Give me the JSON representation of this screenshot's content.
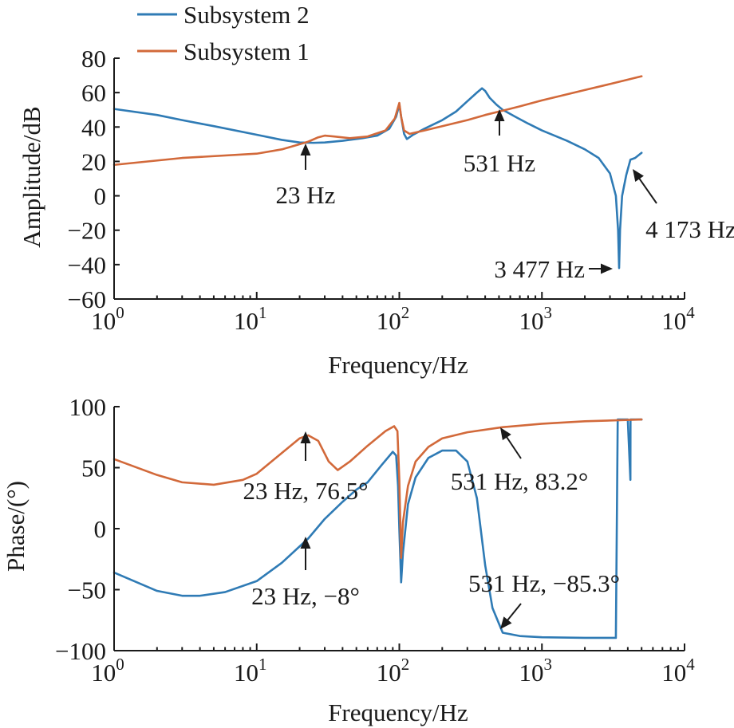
{
  "colors": {
    "subsystem2": "#2f7bb5",
    "subsystem1": "#d2693a",
    "axis": "#1a1a1a"
  },
  "chart_data": [
    {
      "type": "line",
      "xscale": "log",
      "xlim": [
        1,
        10000
      ],
      "ylim": [
        -60,
        80
      ],
      "xlabel": "Frequency/Hz",
      "ylabel": "Amplitude/dB",
      "grid": false,
      "legend_position": "top-left",
      "x_ticks": [
        {
          "value": 1,
          "base": "10",
          "exp": "0"
        },
        {
          "value": 10,
          "base": "10",
          "exp": "1"
        },
        {
          "value": 100,
          "base": "10",
          "exp": "2"
        },
        {
          "value": 1000,
          "base": "10",
          "exp": "3"
        },
        {
          "value": 10000,
          "base": "10",
          "exp": "4"
        }
      ],
      "y_ticks": [
        {
          "value": 80,
          "label": "80"
        },
        {
          "value": 60,
          "label": "60"
        },
        {
          "value": 40,
          "label": "40"
        },
        {
          "value": 20,
          "label": "20"
        },
        {
          "value": 0,
          "label": "0"
        },
        {
          "value": -20,
          "label": "-20"
        },
        {
          "value": -40,
          "label": "-40"
        },
        {
          "value": -60,
          "label": "-60"
        }
      ],
      "series": [
        {
          "name": "Subsystem 2",
          "color": "#2f7bb5",
          "points": [
            [
              1,
              50.5
            ],
            [
              2,
              47
            ],
            [
              3,
              44
            ],
            [
              5,
              40.5
            ],
            [
              10,
              35.5
            ],
            [
              15,
              32.5
            ],
            [
              20,
              31
            ],
            [
              25,
              30.8
            ],
            [
              30,
              31
            ],
            [
              40,
              32
            ],
            [
              55,
              33.5
            ],
            [
              70,
              35
            ],
            [
              85,
              39
            ],
            [
              95,
              46
            ],
            [
              100,
              53
            ],
            [
              103,
              46
            ],
            [
              108,
              36
            ],
            [
              113,
              33
            ],
            [
              125,
              35.5
            ],
            [
              150,
              39
            ],
            [
              200,
              44
            ],
            [
              250,
              49
            ],
            [
              300,
              55
            ],
            [
              350,
              60
            ],
            [
              380,
              62.5
            ],
            [
              400,
              61
            ],
            [
              430,
              57
            ],
            [
              480,
              53
            ],
            [
              531,
              50
            ],
            [
              650,
              46
            ],
            [
              800,
              42
            ],
            [
              1000,
              38
            ],
            [
              1500,
              32
            ],
            [
              2000,
              27
            ],
            [
              2500,
              22
            ],
            [
              3000,
              13
            ],
            [
              3300,
              0
            ],
            [
              3420,
              -20
            ],
            [
              3477,
              -42
            ],
            [
              3530,
              -20
            ],
            [
              3650,
              0
            ],
            [
              3900,
              12
            ],
            [
              4173,
              21
            ],
            [
              4500,
              22
            ],
            [
              5000,
              25
            ]
          ]
        },
        {
          "name": "Subsystem 1",
          "color": "#d2693a",
          "points": [
            [
              1,
              18
            ],
            [
              3,
              22
            ],
            [
              10,
              24.5
            ],
            [
              15,
              27
            ],
            [
              20,
              30
            ],
            [
              23,
              31.5
            ],
            [
              27,
              34
            ],
            [
              30,
              35
            ],
            [
              35,
              34.5
            ],
            [
              45,
              33.5
            ],
            [
              60,
              34.5
            ],
            [
              80,
              38
            ],
            [
              93,
              45
            ],
            [
              100,
              54
            ],
            [
              103,
              46
            ],
            [
              108,
              38
            ],
            [
              118,
              36
            ],
            [
              150,
              38
            ],
            [
              200,
              40.5
            ],
            [
              300,
              44
            ],
            [
              400,
              47
            ],
            [
              531,
              49.5
            ],
            [
              700,
              52
            ],
            [
              1000,
              55.5
            ],
            [
              2000,
              61.5
            ],
            [
              3000,
              65
            ],
            [
              5000,
              69.5
            ]
          ]
        }
      ],
      "annotations": [
        {
          "text": "23 Hz",
          "x": 23,
          "y": 31
        },
        {
          "text": "531 Hz",
          "x": 531,
          "y": 49.5
        },
        {
          "text": "4 173 Hz",
          "x": 4173,
          "y": 21
        },
        {
          "text": "3 477 Hz",
          "x": 3477,
          "y": -42
        }
      ]
    },
    {
      "type": "line",
      "xscale": "log",
      "xlim": [
        1,
        10000
      ],
      "ylim": [
        -100,
        100
      ],
      "xlabel": "Frequency/Hz",
      "ylabel": "Phase/(°)",
      "grid": false,
      "x_ticks": [
        {
          "value": 1,
          "base": "10",
          "exp": "0"
        },
        {
          "value": 10,
          "base": "10",
          "exp": "1"
        },
        {
          "value": 100,
          "base": "10",
          "exp": "2"
        },
        {
          "value": 1000,
          "base": "10",
          "exp": "3"
        },
        {
          "value": 10000,
          "base": "10",
          "exp": "4"
        }
      ],
      "y_ticks": [
        {
          "value": 100,
          "label": "100"
        },
        {
          "value": 50,
          "label": "50"
        },
        {
          "value": 0,
          "label": "0"
        },
        {
          "value": -50,
          "label": "-50"
        },
        {
          "value": -100,
          "label": "-100"
        }
      ],
      "series": [
        {
          "name": "Subsystem 2",
          "color": "#2f7bb5",
          "points": [
            [
              1,
              -36
            ],
            [
              2,
              -51
            ],
            [
              3,
              -55
            ],
            [
              4,
              -55
            ],
            [
              6,
              -52
            ],
            [
              10,
              -43
            ],
            [
              15,
              -28
            ],
            [
              23,
              -8
            ],
            [
              30,
              8
            ],
            [
              40,
              22
            ],
            [
              50,
              32
            ],
            [
              60,
              38
            ],
            [
              75,
              52
            ],
            [
              90,
              63
            ],
            [
              95,
              60
            ],
            [
              98,
              35
            ],
            [
              100,
              0
            ],
            [
              103,
              -44
            ],
            [
              106,
              -20
            ],
            [
              115,
              20
            ],
            [
              130,
              42
            ],
            [
              160,
              58
            ],
            [
              200,
              64
            ],
            [
              250,
              64
            ],
            [
              300,
              55
            ],
            [
              350,
              25
            ],
            [
              400,
              -30
            ],
            [
              450,
              -65
            ],
            [
              531,
              -85.3
            ],
            [
              700,
              -88
            ],
            [
              1000,
              -89
            ],
            [
              2000,
              -89.5
            ],
            [
              3300,
              -89.5
            ],
            [
              3400,
              89.5
            ],
            [
              4000,
              89.5
            ],
            [
              4173,
              40
            ],
            [
              4180,
              89.5
            ],
            [
              5000,
              89.5
            ]
          ]
        },
        {
          "name": "Subsystem 1",
          "color": "#d2693a",
          "points": [
            [
              1,
              57
            ],
            [
              2,
              44
            ],
            [
              3,
              38
            ],
            [
              5,
              36
            ],
            [
              8,
              40
            ],
            [
              10,
              45
            ],
            [
              15,
              62
            ],
            [
              20,
              74
            ],
            [
              23,
              76.5
            ],
            [
              27,
              72
            ],
            [
              32,
              55
            ],
            [
              37,
              48
            ],
            [
              45,
              55
            ],
            [
              60,
              68
            ],
            [
              80,
              80
            ],
            [
              92,
              84
            ],
            [
              97,
              80
            ],
            [
              100,
              40
            ],
            [
              103,
              -24
            ],
            [
              106,
              5
            ],
            [
              115,
              35
            ],
            [
              130,
              55
            ],
            [
              160,
              67
            ],
            [
              200,
              74
            ],
            [
              300,
              79
            ],
            [
              531,
              83.2
            ],
            [
              1000,
              86
            ],
            [
              2000,
              88
            ],
            [
              5000,
              89.5
            ]
          ]
        }
      ],
      "annotations": [
        {
          "text": "23 Hz, 76.5°",
          "x": 23,
          "y": 76.5
        },
        {
          "text": "531 Hz, 83.2°",
          "x": 531,
          "y": 83.2
        },
        {
          "text": "23 Hz, −8°",
          "x": 23,
          "y": -8
        },
        {
          "text": "531 Hz, −85.3°",
          "x": 531,
          "y": -85.3
        }
      ]
    }
  ]
}
